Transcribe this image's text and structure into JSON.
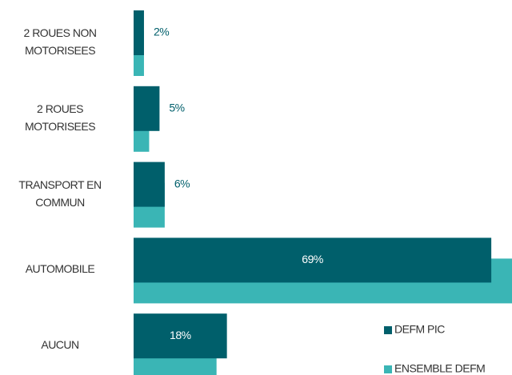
{
  "chart_data": {
    "type": "barh",
    "categories": [
      "2 ROUES NON\nMOTORISEES",
      "2 ROUES\nMOTORISEES",
      "TRANSPORT EN\nCOMMUN",
      "AUTOMOBILE",
      "AUCUN"
    ],
    "series": [
      {
        "name": "DEFM PIC",
        "color": "#005f6b",
        "values": [
          2,
          5,
          6,
          69,
          18
        ],
        "value_labels": [
          "2%",
          "5%",
          "6%",
          "69%",
          "18%"
        ]
      },
      {
        "name": "ENSEMBLE DEFM",
        "color": "#3ab5b5",
        "values": [
          2,
          3,
          6,
          73,
          16
        ]
      }
    ],
    "legend": "lower right"
  }
}
